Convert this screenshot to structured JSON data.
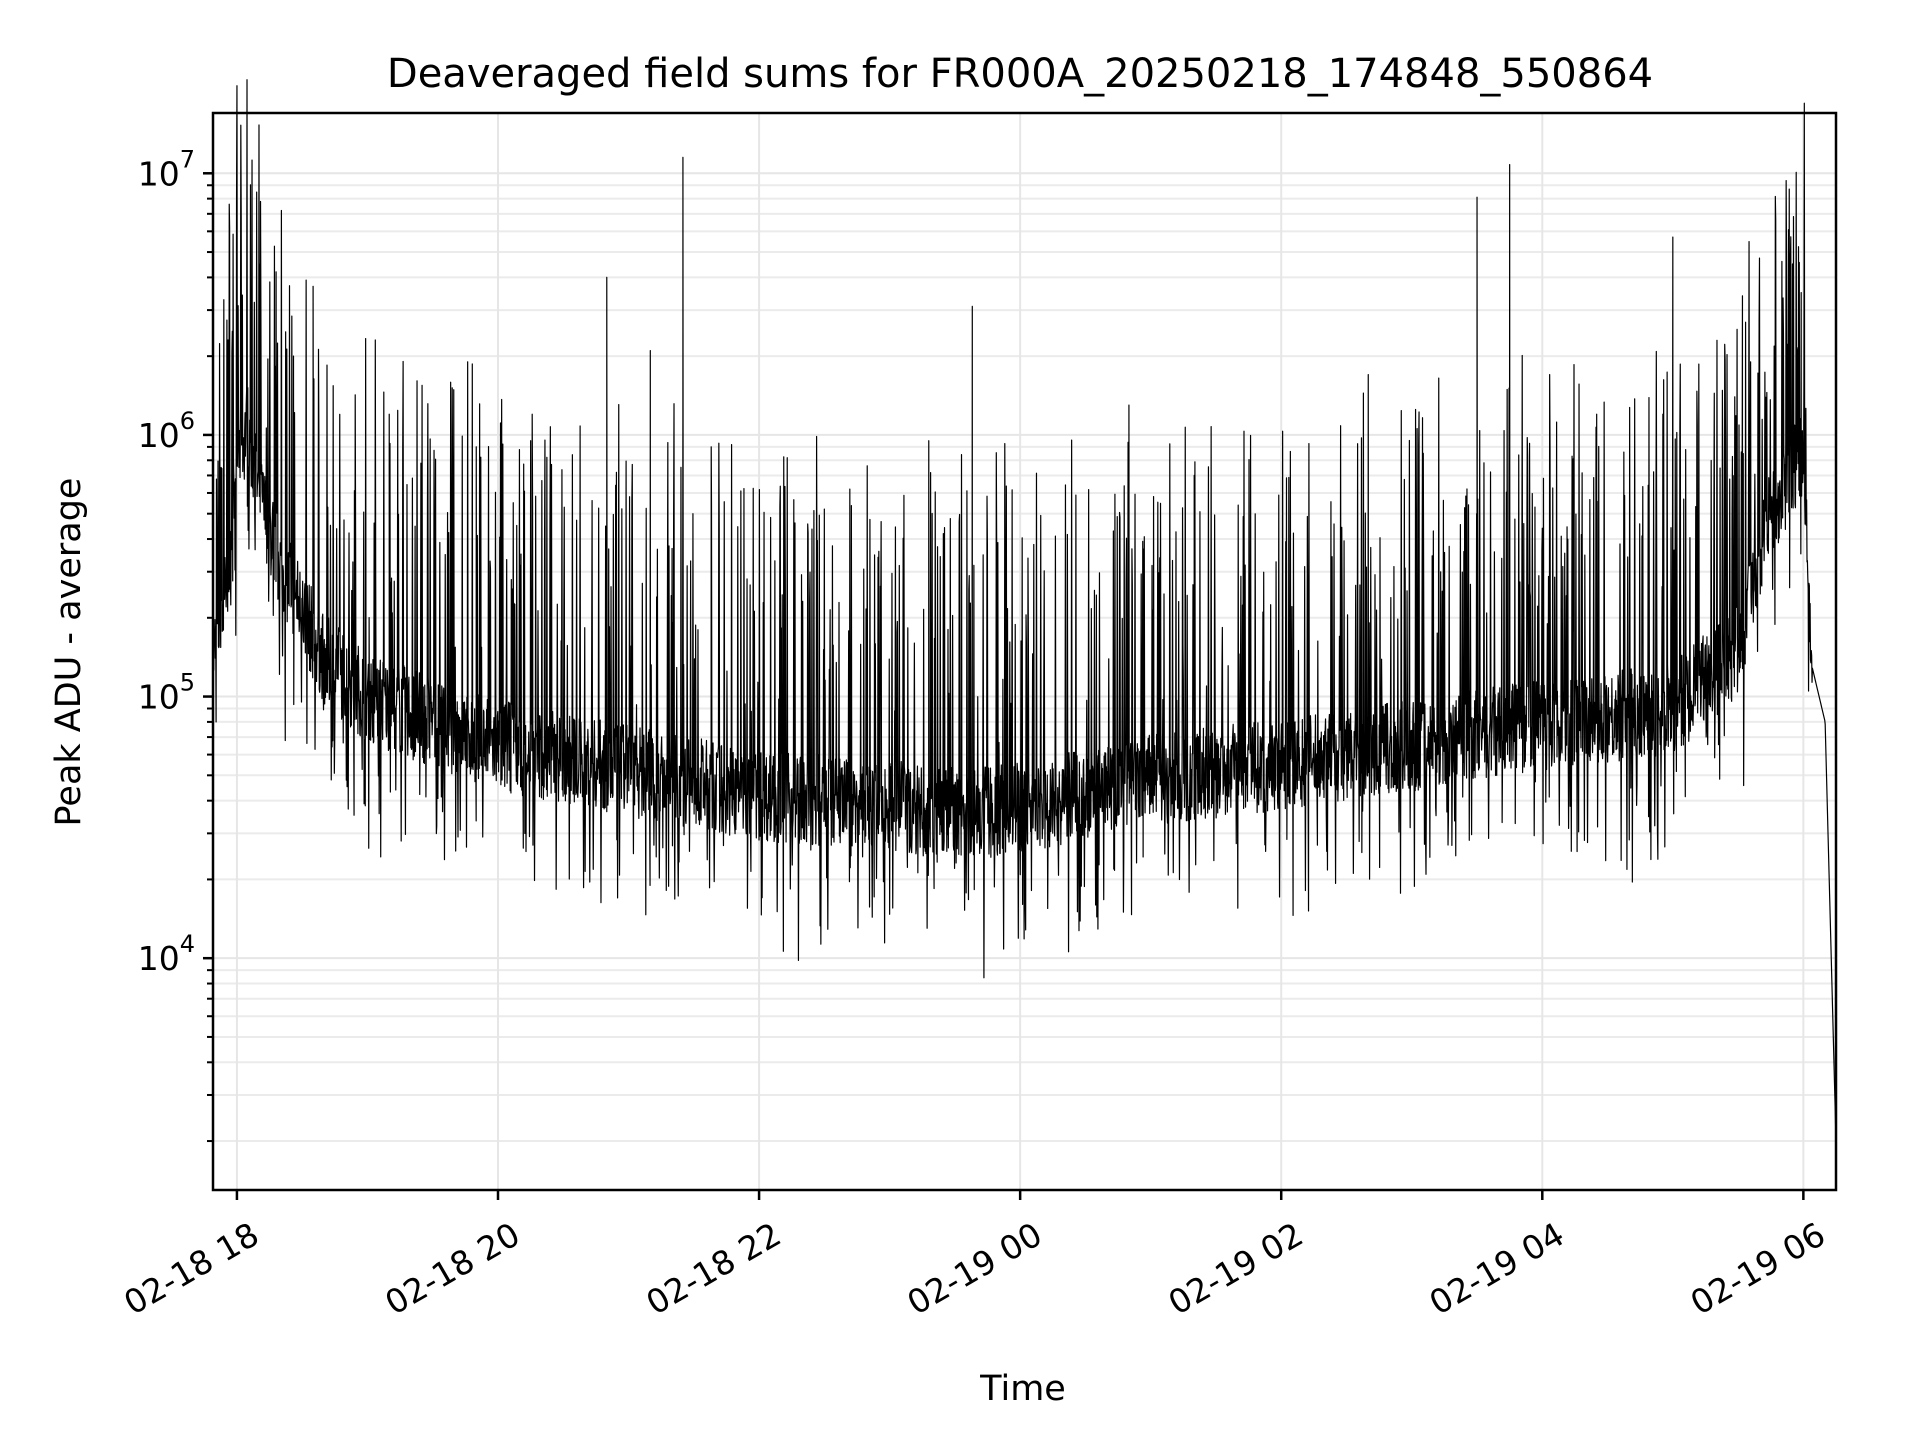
{
  "chart_data": {
    "type": "line",
    "title": "Deaveraged field sums for FR000A_20250218_174848_550864",
    "xlabel": "Time",
    "ylabel": "Peak ADU - average",
    "y_scale": "log",
    "ylim": [
      1300,
      17000000
    ],
    "xlim": [
      "2025-02-18 17:49",
      "2025-02-19 06:15"
    ],
    "grid": true,
    "line_color": "#000000",
    "x_ticks": [
      {
        "value": "2025-02-18 18:00",
        "label": "02-18 18"
      },
      {
        "value": "2025-02-18 20:00",
        "label": "02-18 20"
      },
      {
        "value": "2025-02-18 22:00",
        "label": "02-18 22"
      },
      {
        "value": "2025-02-19 00:00",
        "label": "02-19 00"
      },
      {
        "value": "2025-02-19 02:00",
        "label": "02-19 02"
      },
      {
        "value": "2025-02-19 04:00",
        "label": "02-19 04"
      },
      {
        "value": "2025-02-19 06:00",
        "label": "02-19 06"
      }
    ],
    "y_ticks": [
      {
        "value": 10000,
        "base": "10",
        "exp": "4"
      },
      {
        "value": 100000,
        "base": "10",
        "exp": "5"
      },
      {
        "value": 1000000,
        "base": "10",
        "exp": "6"
      },
      {
        "value": 10000000,
        "base": "10",
        "exp": "7"
      }
    ],
    "series": [
      {
        "baseline": [
          [
            "2025-02-18 17:49",
            140000
          ],
          [
            "2025-02-18 17:55",
            250000
          ],
          [
            "2025-02-18 18:00",
            800000
          ],
          [
            "2025-02-18 18:05",
            1100000
          ],
          [
            "2025-02-18 18:10",
            600000
          ],
          [
            "2025-02-18 18:20",
            320000
          ],
          [
            "2025-02-18 18:40",
            140000
          ],
          [
            "2025-02-18 19:00",
            100000
          ],
          [
            "2025-02-18 19:30",
            80000
          ],
          [
            "2025-02-18 20:00",
            65000
          ],
          [
            "2025-02-18 21:00",
            52000
          ],
          [
            "2025-02-18 22:00",
            42000
          ],
          [
            "2025-02-18 23:00",
            38000
          ],
          [
            "2025-02-18 23:45",
            36000
          ],
          [
            "2025-02-19 00:30",
            42000
          ],
          [
            "2025-02-19 01:00",
            48000
          ],
          [
            "2025-02-19 02:00",
            55000
          ],
          [
            "2025-02-19 03:00",
            65000
          ],
          [
            "2025-02-19 04:00",
            78000
          ],
          [
            "2025-02-19 05:00",
            90000
          ],
          [
            "2025-02-19 05:30",
            150000
          ],
          [
            "2025-02-19 05:45",
            500000
          ],
          [
            "2025-02-19 06:00",
            900000
          ],
          [
            "2025-02-19 06:04",
            130000
          ],
          [
            "2025-02-19 06:10",
            80000
          ],
          [
            "2025-02-19 06:15",
            2000
          ]
        ],
        "spikes": [
          [
            "2025-02-18 18:18",
            4200000
          ],
          [
            "2025-02-18 18:26",
            2000000
          ],
          [
            "2025-02-18 18:35",
            1500000
          ],
          [
            "2025-02-18 19:10",
            1200000
          ],
          [
            "2025-02-18 19:50",
            900000
          ],
          [
            "2025-02-18 20:15",
            950000
          ],
          [
            "2025-02-18 20:50",
            4000000
          ],
          [
            "2025-02-18 21:10",
            2100000
          ],
          [
            "2025-02-18 21:25",
            11500000
          ],
          [
            "2025-02-18 21:38",
            900000
          ],
          [
            "2025-02-18 23:18",
            950000
          ],
          [
            "2025-02-18 23:38",
            3100000
          ],
          [
            "2025-02-19 00:50",
            1300000
          ],
          [
            "2025-02-19 01:20",
            700000
          ],
          [
            "2025-02-19 02:40",
            1700000
          ],
          [
            "2025-02-19 03:30",
            8100000
          ],
          [
            "2025-02-19 03:45",
            10800000
          ],
          [
            "2025-02-19 04:25",
            1200000
          ],
          [
            "2025-02-19 05:00",
            5700000
          ],
          [
            "2025-02-19 05:32",
            3400000
          ],
          [
            "2025-02-19 05:55",
            4500000
          ],
          [
            "2025-02-19 05:59",
            3500000
          ]
        ]
      }
    ]
  }
}
